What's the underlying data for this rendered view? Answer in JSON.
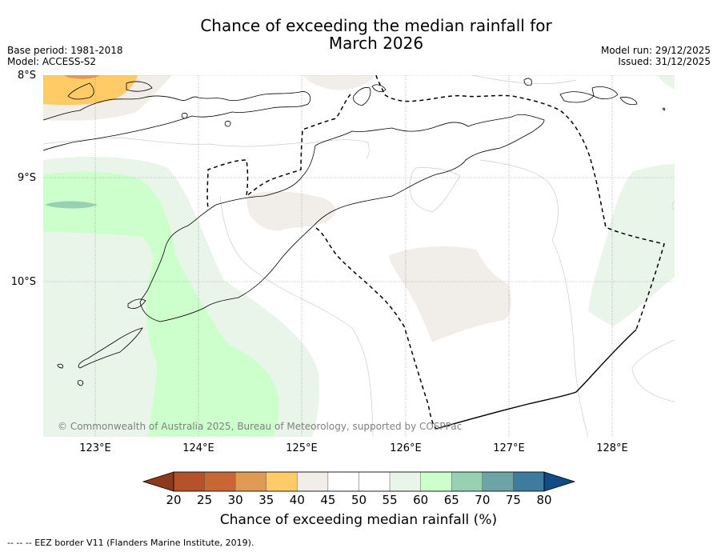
{
  "title": {
    "line1": "Chance of exceeding the median rainfall for",
    "line2": "March 2026"
  },
  "meta": {
    "base_period": "Base period: 1981-2018",
    "model": "Model: ACCESS-S2",
    "model_run": "Model run: 29/12/2025",
    "issued": "Issued: 31/12/2025"
  },
  "map": {
    "lat_labels": [
      "8°S",
      "9°S",
      "10°S"
    ],
    "lon_labels": [
      "123°E",
      "124°E",
      "125°E",
      "126°E",
      "127°E",
      "128°E"
    ],
    "copyright": "© Commonwealth of Australia 2025, Bureau of Meteorology, supported by COSPPac"
  },
  "colorbar": {
    "ticks": [
      "20",
      "25",
      "30",
      "35",
      "40",
      "45",
      "50",
      "55",
      "60",
      "65",
      "70",
      "75",
      "80"
    ],
    "colors": [
      "#8b3a1e",
      "#b5512b",
      "#c96734",
      "#e19a53",
      "#ffcb66",
      "#f1ede8",
      "#ffffff",
      "#ffffff",
      "#eaf5ea",
      "#ccffcc",
      "#98d0b4",
      "#6da4a6",
      "#3e7c9e",
      "#114b86"
    ],
    "label": "Chance of exceeding median rainfall (%)"
  },
  "footer": "--  --  -- EEZ border V11 (Flanders Marine Institute, 2019)."
}
